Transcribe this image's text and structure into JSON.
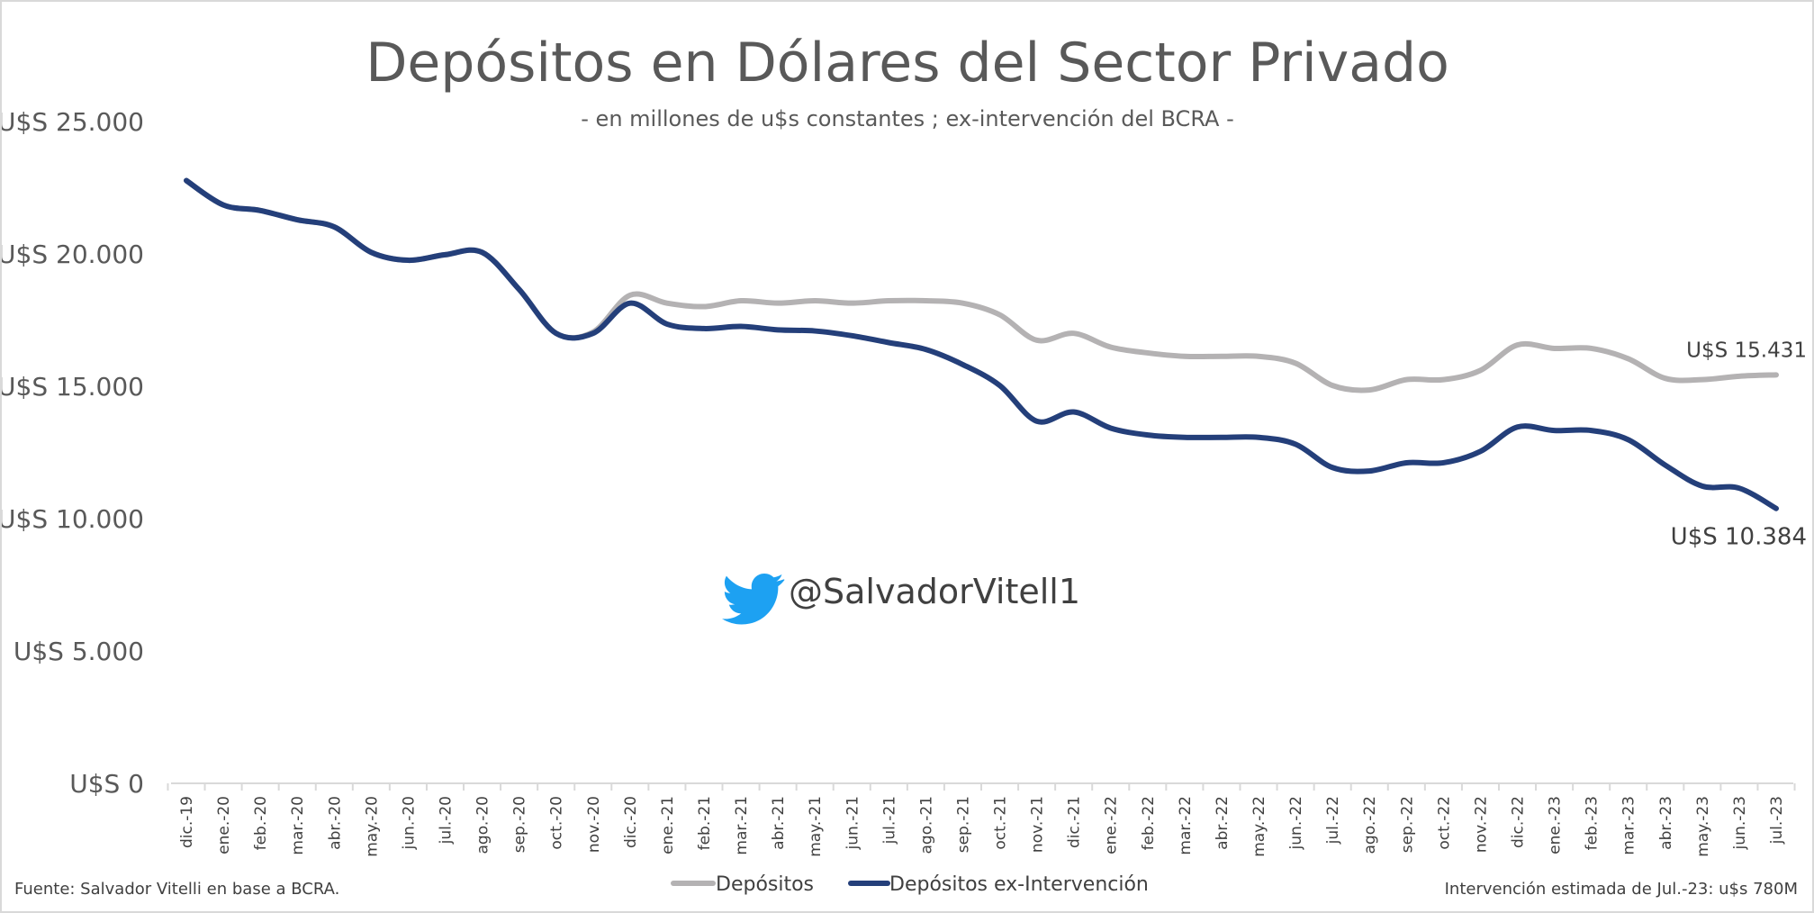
{
  "chart_data": {
    "type": "line",
    "title": "Depósitos en Dólares del Sector Privado",
    "subtitle": "- en millones de u$s constantes ; ex-intervención del BCRA -",
    "ylim": [
      0,
      25000
    ],
    "yticks": [
      0,
      5000,
      10000,
      15000,
      20000,
      25000
    ],
    "ytick_labels": [
      "U$S 0",
      "U$S 5.000",
      "U$S 10.000",
      "U$S 15.000",
      "U$S 20.000",
      "U$S 25.000"
    ],
    "categories": [
      "dic.-19",
      "ene.-20",
      "feb.-20",
      "mar.-20",
      "abr.-20",
      "may.-20",
      "jun.-20",
      "jul.-20",
      "ago.-20",
      "sep.-20",
      "oct.-20",
      "nov.-20",
      "dic.-20",
      "ene.-21",
      "feb.-21",
      "mar.-21",
      "abr.-21",
      "may.-21",
      "jun.-21",
      "jul.-21",
      "ago.-21",
      "sep.-21",
      "oct.-21",
      "nov.-21",
      "dic.-21",
      "ene.-22",
      "feb.-22",
      "mar.-22",
      "abr.-22",
      "may.-22",
      "jun.-22",
      "jul.-22",
      "ago.-22",
      "sep.-22",
      "oct.-22",
      "nov.-22",
      "dic.-22",
      "ene.-23",
      "feb.-23",
      "mar.-23",
      "abr.-23",
      "may.-23",
      "jun.-23",
      "jul.-23"
    ],
    "series": [
      {
        "name": "Depósitos",
        "color": "#b4b2b3",
        "values": [
          22770,
          21850,
          21640,
          21290,
          21020,
          20060,
          19760,
          19970,
          20060,
          18660,
          17000,
          17050,
          18440,
          18140,
          18010,
          18230,
          18140,
          18230,
          18140,
          18230,
          18230,
          18140,
          17700,
          16740,
          17000,
          16480,
          16260,
          16130,
          16130,
          16130,
          15870,
          15030,
          14860,
          15250,
          15250,
          15600,
          16560,
          16430,
          16430,
          16040,
          15300,
          15250,
          15380,
          15431
        ],
        "end_label": "U$S 15.431"
      },
      {
        "name": "Depósitos ex-Intervención",
        "color": "#243f7a",
        "values": [
          22770,
          21850,
          21640,
          21290,
          21020,
          20060,
          19760,
          19970,
          20060,
          18660,
          17000,
          17000,
          18140,
          17350,
          17180,
          17260,
          17130,
          17090,
          16910,
          16650,
          16390,
          15820,
          15030,
          13680,
          14030,
          13420,
          13160,
          13070,
          13070,
          13070,
          12810,
          11930,
          11800,
          12110,
          12110,
          12540,
          13460,
          13330,
          13330,
          12980,
          12020,
          11230,
          11150,
          10384
        ],
        "end_label": "U$S 10.384"
      }
    ],
    "legend": "bottom",
    "grid": false
  },
  "watermark": {
    "handle": "@SalvadorVitell1",
    "icon": "twitter-bird-icon",
    "color": "#1da1f2"
  },
  "footer": {
    "source": "Fuente: Salvador Vitelli en base a BCRA.",
    "note": "Intervención estimada de Jul.-23: u$s 780M"
  }
}
